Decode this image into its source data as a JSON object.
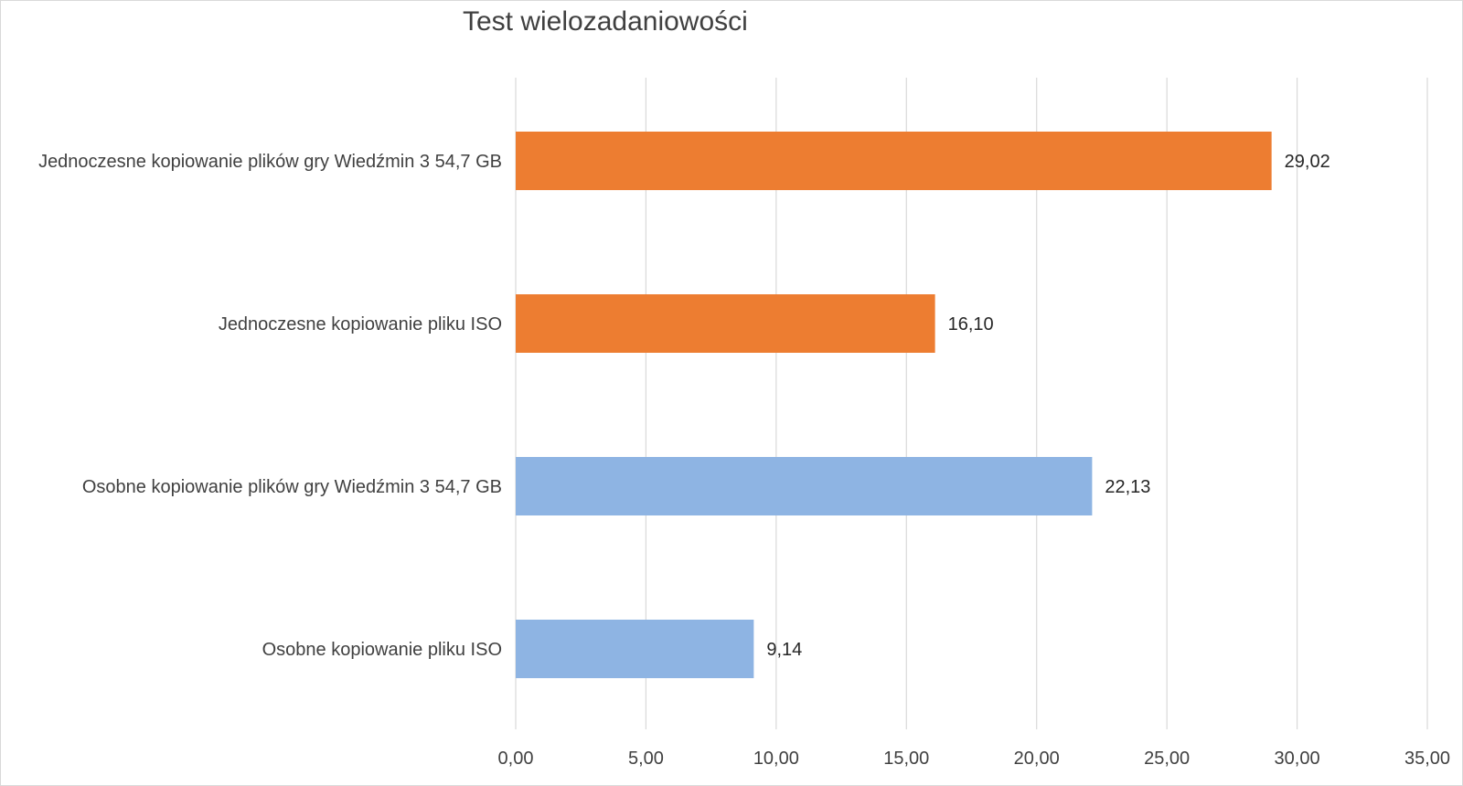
{
  "chart_data": {
    "type": "bar",
    "orientation": "horizontal",
    "title": "Test wielozadaniowości",
    "xlabel": "",
    "ylabel": "",
    "categories": [
      "Jednoczesne kopiowanie plików gry Wiedźmin 3 54,7 GB",
      "Jednoczesne kopiowanie pliku ISO",
      "Osobne kopiowanie plików gry Wiedźmin 3 54,7 GB",
      "Osobne kopiowanie pliku ISO"
    ],
    "values": [
      29.02,
      16.1,
      22.13,
      9.14
    ],
    "data_labels": [
      "29,02",
      "16,10",
      "22,13",
      "9,14"
    ],
    "bar_colors": [
      "#ED7D31",
      "#ED7D31",
      "#8EB4E3",
      "#8EB4E3"
    ],
    "xlim": [
      0,
      35
    ],
    "x_ticks": [
      0,
      5,
      10,
      15,
      20,
      25,
      30,
      35
    ],
    "x_tick_labels": [
      "0,00",
      "5,00",
      "10,00",
      "15,00",
      "20,00",
      "25,00",
      "30,00",
      "35,00"
    ],
    "grid": "vertical",
    "legend": "none"
  }
}
